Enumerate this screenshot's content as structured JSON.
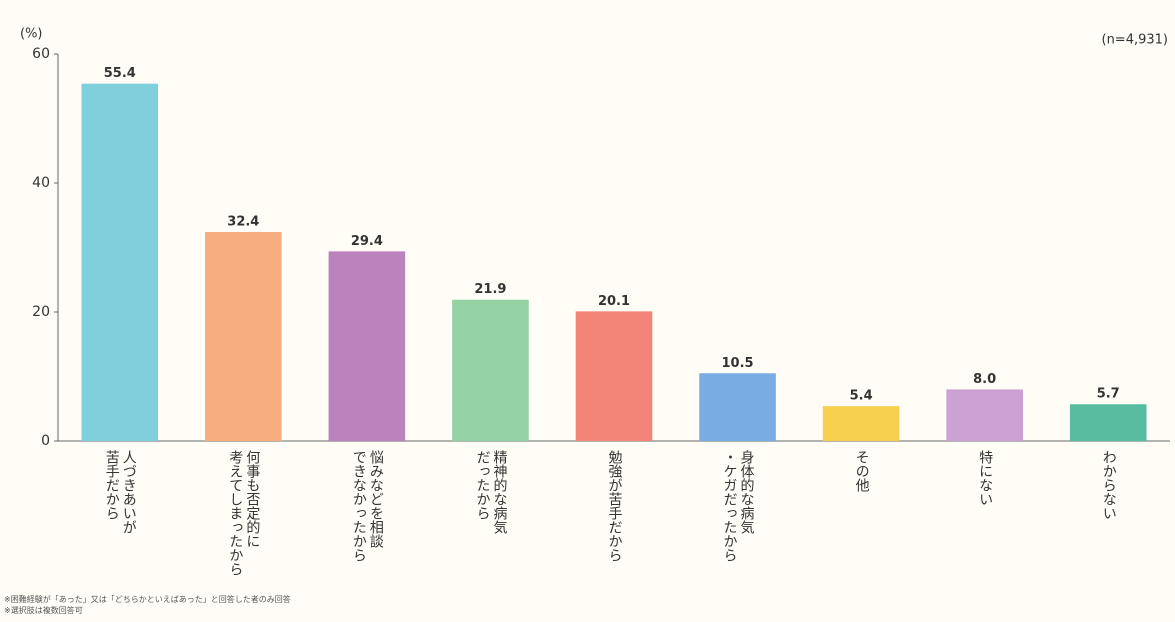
{
  "chart_data": {
    "type": "bar",
    "y_unit": "(%)",
    "sample_note": "(n=4,931)",
    "categories": [
      "人づきあいが\n苦手だから",
      "何事も否定的に\n考えてしまったから",
      "悩みなどを相談\nできなかったから",
      "精神的な病気\nだったから",
      "勉強が苦手だから",
      "身体的な病気\n・ケガだったから",
      "その他",
      "特にない",
      "わからない"
    ],
    "values": [
      55.4,
      32.4,
      29.4,
      21.9,
      20.1,
      10.5,
      5.4,
      8.0,
      5.7
    ],
    "value_labels": [
      "55.4",
      "32.4",
      "29.4",
      "21.9",
      "20.1",
      "10.5",
      "5.4",
      "8.0",
      "5.7"
    ],
    "colors": [
      "#7fcfdc",
      "#f7ad80",
      "#bb82bd",
      "#95d2a3",
      "#f28577",
      "#78ace2",
      "#f7cf4f",
      "#cba2d3",
      "#58bca0"
    ],
    "ylim": [
      0,
      60
    ],
    "yticks": [
      0,
      20,
      40,
      60
    ],
    "grid": false,
    "footnotes": [
      "※困難経験が「あった」又は「どちらかといえばあった」と回答した者のみ回答",
      "※選択肢は複数回答可"
    ]
  }
}
